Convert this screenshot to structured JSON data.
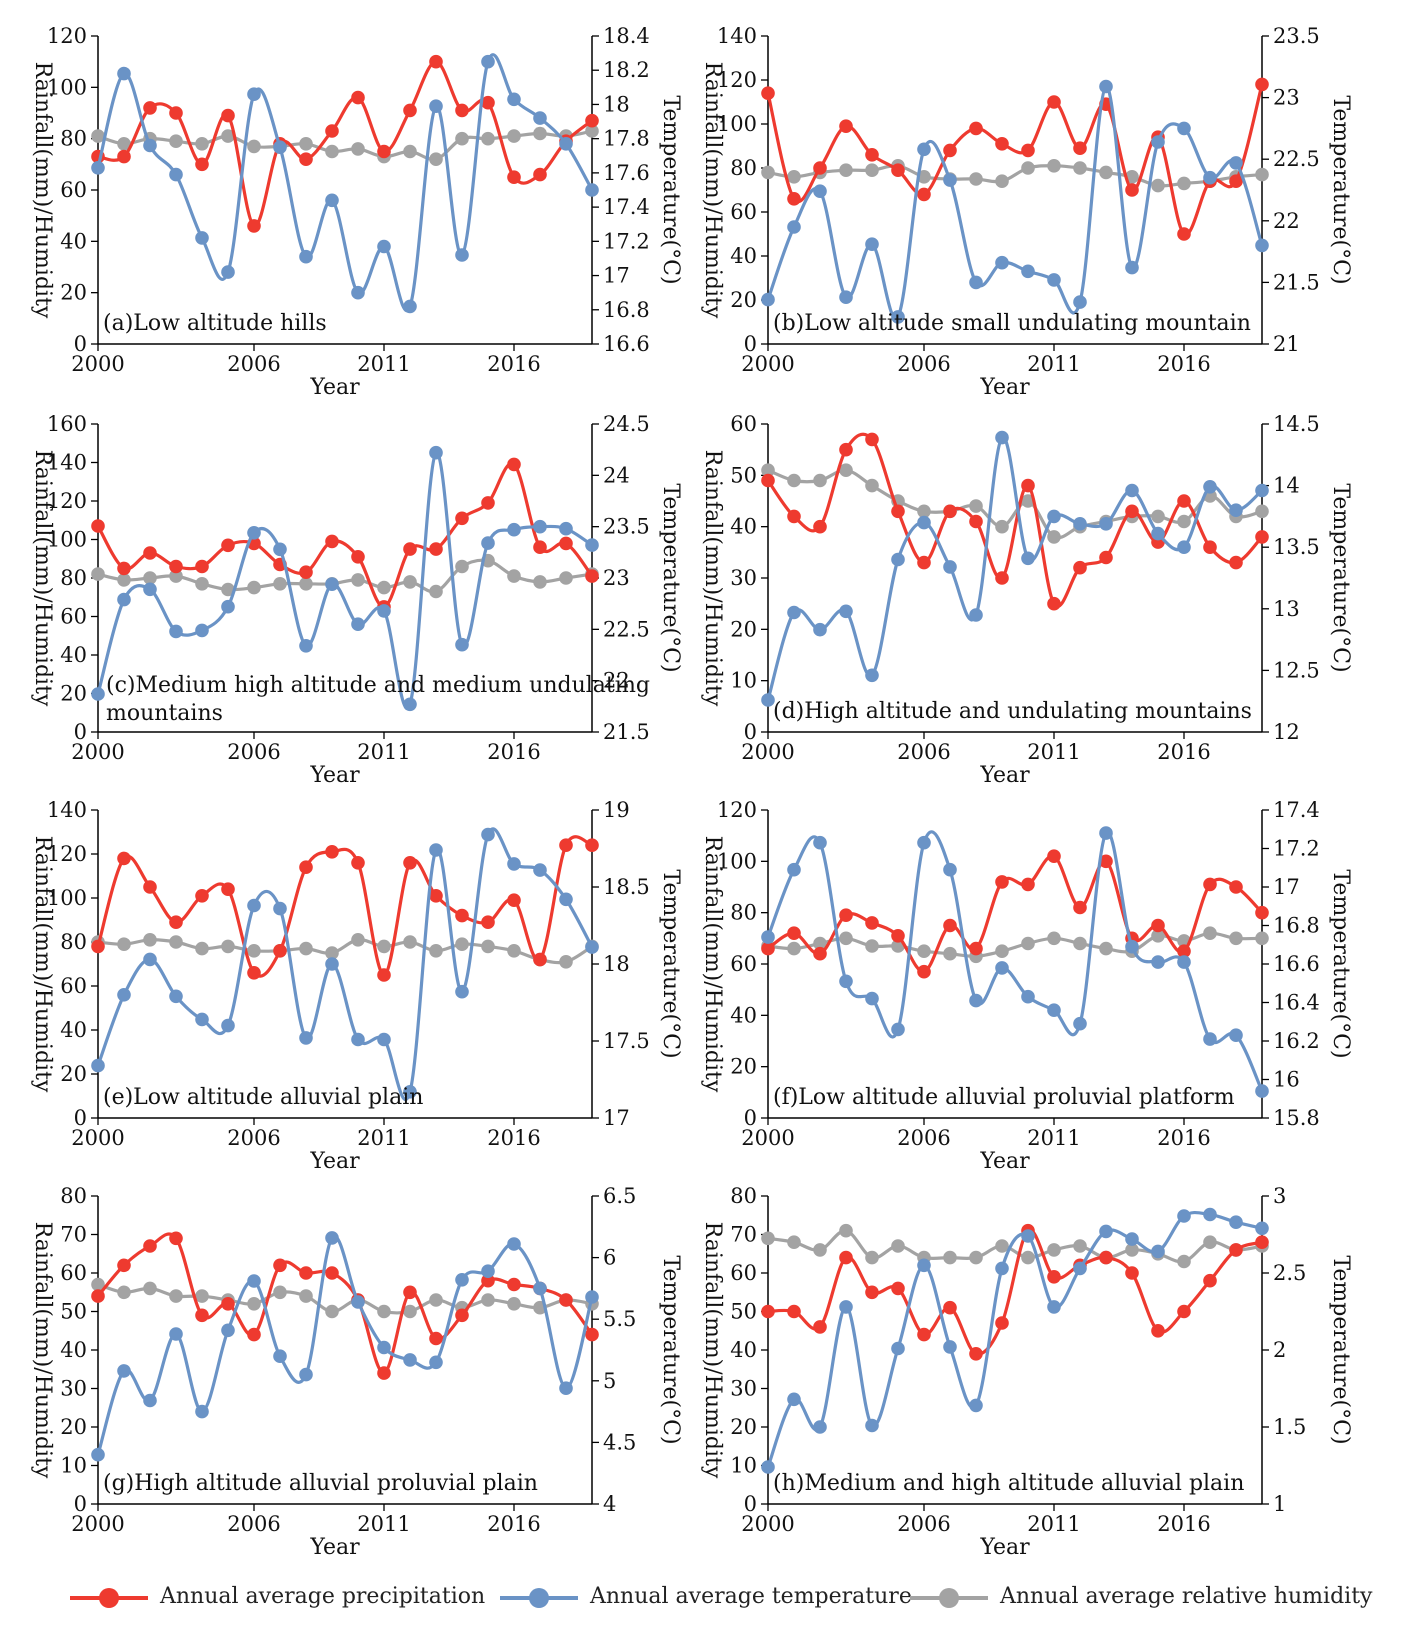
{
  "colors": {
    "precipitation": "#ee3a2f",
    "temperature": "#6a93c6",
    "humidity": "#a3a3a3"
  },
  "legend": {
    "precipitation": "Annual average precipitation",
    "temperature": "Annual average temperature",
    "humidity": "Annual average relative humidity"
  },
  "chart_data": [
    {
      "type": "line",
      "title": "(a)Low altitude hills",
      "xlabel": "Year",
      "ylabel": "Rainfall(mm)/Humidity",
      "y2label": "Temperature(°C)",
      "xticks": [
        2000,
        2006,
        2011,
        2016
      ],
      "xlim": [
        2000,
        2019
      ],
      "ylim": [
        0,
        120
      ],
      "yticks": [
        0,
        20,
        40,
        60,
        80,
        100,
        120
      ],
      "y2lim": [
        16.6,
        18.4
      ],
      "y2ticks": [
        16.6,
        16.8,
        17.0,
        17.2,
        17.4,
        17.6,
        17.8,
        18.0,
        18.2,
        18.4
      ],
      "x": [
        2000,
        2001,
        2002,
        2003,
        2004,
        2005,
        2006,
        2007,
        2008,
        2009,
        2010,
        2011,
        2012,
        2013,
        2014,
        2015,
        2016,
        2017,
        2018,
        2019
      ],
      "series": [
        {
          "name": "Annual average precipitation",
          "axis": "left",
          "values": [
            73,
            73,
            92,
            90,
            70,
            89,
            46,
            78,
            72,
            83,
            96,
            75,
            91,
            110,
            91,
            94,
            65,
            66,
            79,
            87
          ]
        },
        {
          "name": "Annual average temperature",
          "axis": "right",
          "values": [
            17.63,
            18.18,
            17.76,
            17.59,
            17.22,
            17.02,
            18.06,
            17.75,
            17.11,
            17.44,
            16.9,
            17.17,
            16.82,
            17.99,
            17.12,
            18.25,
            18.03,
            17.92,
            17.77,
            17.5
          ]
        },
        {
          "name": "Annual average relative humidity",
          "axis": "left",
          "values": [
            81,
            78,
            80,
            79,
            78,
            81,
            77,
            77,
            78,
            75,
            76,
            73,
            75,
            72,
            80,
            80,
            81,
            82,
            81,
            83
          ]
        }
      ]
    },
    {
      "type": "line",
      "title": "(b)Low altitude small undulating mountain",
      "xlabel": "Year",
      "ylabel": "Rainfall(mm)/Humidity",
      "y2label": "Temperature(°C)",
      "xticks": [
        2000,
        2006,
        2011,
        2016
      ],
      "xlim": [
        2000,
        2019
      ],
      "ylim": [
        0,
        140
      ],
      "yticks": [
        0,
        20,
        40,
        60,
        80,
        100,
        120,
        140
      ],
      "y2lim": [
        21,
        23.5
      ],
      "y2ticks": [
        21,
        21.5,
        22,
        22.5,
        23,
        23.5
      ],
      "x": [
        2000,
        2001,
        2002,
        2003,
        2004,
        2005,
        2006,
        2007,
        2008,
        2009,
        2010,
        2011,
        2012,
        2013,
        2014,
        2015,
        2016,
        2017,
        2018,
        2019
      ],
      "series": [
        {
          "name": "Annual average precipitation",
          "axis": "left",
          "values": [
            114,
            66,
            80,
            99,
            86,
            79,
            68,
            88,
            98,
            91,
            88,
            110,
            89,
            109,
            70,
            94,
            50,
            74,
            74,
            118
          ]
        },
        {
          "name": "Annual average temperature",
          "axis": "right",
          "values": [
            21.36,
            21.95,
            22.24,
            21.38,
            21.81,
            21.22,
            22.58,
            22.33,
            21.5,
            21.66,
            21.59,
            21.52,
            21.34,
            23.09,
            21.62,
            22.64,
            22.75,
            22.35,
            22.47,
            21.8
          ]
        },
        {
          "name": "Annual average relative humidity",
          "axis": "left",
          "values": [
            78,
            76,
            78,
            79,
            79,
            81,
            76,
            75,
            75,
            74,
            80,
            81,
            80,
            78,
            76,
            72,
            73,
            74,
            76,
            77
          ]
        }
      ]
    },
    {
      "type": "line",
      "title": "(c)Medium high altitude and medium undulating mountains",
      "xlabel": "Year",
      "ylabel": "Rainfall(mm)/Humidity",
      "y2label": "Temperature(°C)",
      "xticks": [
        2000,
        2006,
        2011,
        2016
      ],
      "xlim": [
        2000,
        2019
      ],
      "ylim": [
        0,
        160
      ],
      "yticks": [
        0,
        20,
        40,
        60,
        80,
        100,
        120,
        140,
        160
      ],
      "y2lim": [
        21.5,
        24.5
      ],
      "y2ticks": [
        21.5,
        22,
        22.5,
        23,
        23.5,
        24,
        24.5
      ],
      "x": [
        2000,
        2001,
        2002,
        2003,
        2004,
        2005,
        2006,
        2007,
        2008,
        2009,
        2010,
        2011,
        2012,
        2013,
        2014,
        2015,
        2016,
        2017,
        2018,
        2019
      ],
      "series": [
        {
          "name": "Annual average precipitation",
          "axis": "left",
          "values": [
            107,
            85,
            93,
            86,
            86,
            97,
            98,
            87,
            83,
            99,
            91,
            65,
            95,
            95,
            111,
            119,
            139,
            96,
            98,
            81
          ]
        },
        {
          "name": "Annual average temperature",
          "axis": "right",
          "values": [
            21.87,
            22.79,
            22.89,
            22.48,
            22.49,
            22.72,
            23.44,
            23.28,
            22.34,
            22.94,
            22.55,
            22.68,
            21.77,
            24.22,
            22.35,
            23.34,
            23.47,
            23.5,
            23.48,
            23.32
          ]
        },
        {
          "name": "Annual average relative humidity",
          "axis": "left",
          "values": [
            82,
            79,
            80,
            81,
            77,
            74,
            75,
            77,
            77,
            77,
            79,
            75,
            78,
            73,
            86,
            89,
            81,
            78,
            80,
            82
          ]
        }
      ]
    },
    {
      "type": "line",
      "title": "(d)High altitude and undulating mountains",
      "xlabel": "Year",
      "ylabel": "Rainfall(mm)/Humidity",
      "y2label": "Temperature(°C)",
      "xticks": [
        2000,
        2006,
        2011,
        2016
      ],
      "xlim": [
        2000,
        2019
      ],
      "ylim": [
        0,
        60
      ],
      "yticks": [
        0,
        10,
        20,
        30,
        40,
        50,
        60
      ],
      "y2lim": [
        12,
        14.5
      ],
      "y2ticks": [
        12,
        12.5,
        13,
        13.5,
        14,
        14.5
      ],
      "x": [
        2000,
        2001,
        2002,
        2003,
        2004,
        2005,
        2006,
        2007,
        2008,
        2009,
        2010,
        2011,
        2012,
        2013,
        2014,
        2015,
        2016,
        2017,
        2018,
        2019
      ],
      "series": [
        {
          "name": "Annual average precipitation",
          "axis": "left",
          "values": [
            49,
            42,
            40,
            55,
            57,
            43,
            33,
            43,
            41,
            30,
            48,
            25,
            32,
            34,
            43,
            37,
            45,
            36,
            33,
            38
          ]
        },
        {
          "name": "Annual average temperature",
          "axis": "right",
          "values": [
            12.26,
            12.97,
            12.83,
            12.98,
            12.46,
            13.4,
            13.7,
            13.34,
            12.95,
            14.39,
            13.41,
            13.75,
            13.69,
            13.69,
            13.96,
            13.61,
            13.5,
            13.99,
            13.8,
            13.96
          ]
        },
        {
          "name": "Annual average relative humidity",
          "axis": "left",
          "values": [
            51,
            49,
            49,
            51,
            48,
            45,
            43,
            43,
            44,
            40,
            45,
            38,
            40,
            41,
            42,
            42,
            41,
            46,
            42,
            43
          ]
        }
      ]
    },
    {
      "type": "line",
      "title": "(e)Low altitude alluvial plain",
      "xlabel": "Year",
      "ylabel": "Rainfall(mm)/Humidity",
      "y2label": "Temperature(°C)",
      "xticks": [
        2000,
        2006,
        2011,
        2016
      ],
      "xlim": [
        2000,
        2019
      ],
      "ylim": [
        0,
        140
      ],
      "yticks": [
        0,
        20,
        40,
        60,
        80,
        100,
        120,
        140
      ],
      "y2lim": [
        17,
        19
      ],
      "y2ticks": [
        17,
        17.5,
        18,
        18.5,
        19
      ],
      "x": [
        2000,
        2001,
        2002,
        2003,
        2004,
        2005,
        2006,
        2007,
        2008,
        2009,
        2010,
        2011,
        2012,
        2013,
        2014,
        2015,
        2016,
        2017,
        2018,
        2019
      ],
      "series": [
        {
          "name": "Annual average precipitation",
          "axis": "left",
          "values": [
            78,
            118,
            105,
            89,
            101,
            104,
            66,
            76,
            114,
            121,
            116,
            65,
            116,
            101,
            92,
            89,
            99,
            72,
            124,
            124
          ]
        },
        {
          "name": "Annual average temperature",
          "axis": "right",
          "values": [
            17.34,
            17.8,
            18.03,
            17.79,
            17.64,
            17.6,
            18.38,
            18.36,
            17.52,
            18.0,
            17.51,
            17.51,
            17.17,
            18.74,
            17.82,
            18.84,
            18.65,
            18.61,
            18.42,
            18.11
          ]
        },
        {
          "name": "Annual average relative humidity",
          "axis": "left",
          "values": [
            80,
            79,
            81,
            80,
            77,
            78,
            76,
            76,
            77,
            75,
            81,
            78,
            80,
            76,
            79,
            78,
            76,
            72,
            71,
            78
          ]
        }
      ]
    },
    {
      "type": "line",
      "title": "(f)Low altitude alluvial proluvial platform",
      "xlabel": "Year",
      "ylabel": "Rainfall(mm)/Humidity",
      "y2label": "Temperature(°C)",
      "xticks": [
        2000,
        2006,
        2011,
        2016
      ],
      "xlim": [
        2000,
        2019
      ],
      "ylim": [
        0,
        120
      ],
      "yticks": [
        0,
        20,
        40,
        60,
        80,
        100,
        120
      ],
      "y2lim": [
        15.8,
        17.4
      ],
      "y2ticks": [
        15.8,
        16.0,
        16.2,
        16.4,
        16.6,
        16.8,
        17.0,
        17.2,
        17.4
      ],
      "x": [
        2000,
        2001,
        2002,
        2003,
        2004,
        2005,
        2006,
        2007,
        2008,
        2009,
        2010,
        2011,
        2012,
        2013,
        2014,
        2015,
        2016,
        2017,
        2018,
        2019
      ],
      "series": [
        {
          "name": "Annual average precipitation",
          "axis": "left",
          "values": [
            66,
            72,
            64,
            79,
            76,
            71,
            57,
            75,
            66,
            92,
            91,
            102,
            82,
            100,
            70,
            75,
            65,
            91,
            90,
            80
          ]
        },
        {
          "name": "Annual average temperature",
          "axis": "right",
          "values": [
            16.74,
            17.09,
            17.23,
            16.51,
            16.42,
            16.26,
            17.23,
            17.09,
            16.41,
            16.58,
            16.43,
            16.36,
            16.29,
            17.28,
            16.69,
            16.61,
            16.61,
            16.21,
            16.23,
            15.94
          ]
        },
        {
          "name": "Annual average relative humidity",
          "axis": "left",
          "values": [
            67,
            66,
            68,
            70,
            67,
            67,
            65,
            64,
            63,
            65,
            68,
            70,
            68,
            66,
            65,
            71,
            69,
            72,
            70,
            70
          ]
        }
      ]
    },
    {
      "type": "line",
      "title": "(g)High altitude alluvial proluvial plain",
      "xlabel": "Year",
      "ylabel": "Rainfall(mm)/Humidity",
      "y2label": "Temperature(°C)",
      "xticks": [
        2000,
        2006,
        2011,
        2016
      ],
      "xlim": [
        2000,
        2019
      ],
      "ylim": [
        0,
        80
      ],
      "yticks": [
        0,
        10,
        20,
        30,
        40,
        50,
        60,
        70,
        80
      ],
      "y2lim": [
        4,
        6.5
      ],
      "y2ticks": [
        4,
        4.5,
        5,
        5.5,
        6,
        6.5
      ],
      "x": [
        2000,
        2001,
        2002,
        2003,
        2004,
        2005,
        2006,
        2007,
        2008,
        2009,
        2010,
        2011,
        2012,
        2013,
        2014,
        2015,
        2016,
        2017,
        2018,
        2019
      ],
      "series": [
        {
          "name": "Annual average precipitation",
          "axis": "left",
          "values": [
            54,
            62,
            67,
            69,
            49,
            52,
            44,
            62,
            60,
            60,
            53,
            34,
            55,
            43,
            49,
            58,
            57,
            56,
            53,
            44
          ]
        },
        {
          "name": "Annual average temperature",
          "axis": "right",
          "values": [
            4.4,
            5.08,
            4.84,
            5.38,
            4.75,
            5.41,
            5.81,
            5.2,
            5.05,
            6.16,
            5.64,
            5.27,
            5.17,
            5.15,
            5.82,
            5.89,
            6.11,
            5.75,
            4.94,
            5.68
          ]
        },
        {
          "name": "Annual average relative humidity",
          "axis": "left",
          "values": [
            57,
            55,
            56,
            54,
            54,
            53,
            52,
            55,
            54,
            50,
            53,
            50,
            50,
            53,
            51,
            53,
            52,
            51,
            53,
            52
          ]
        }
      ]
    },
    {
      "type": "line",
      "title": "(h)Medium and high altitude alluvial plain",
      "xlabel": "Year",
      "ylabel": "Rainfall(mm)/Humidity",
      "y2label": "Temperature(°C)",
      "xticks": [
        2000,
        2006,
        2011,
        2016
      ],
      "xlim": [
        2000,
        2019
      ],
      "ylim": [
        0,
        80
      ],
      "yticks": [
        0,
        10,
        20,
        30,
        40,
        50,
        60,
        70,
        80
      ],
      "y2lim": [
        1,
        3
      ],
      "y2ticks": [
        1,
        1.5,
        2,
        2.5,
        3
      ],
      "x": [
        2000,
        2001,
        2002,
        2003,
        2004,
        2005,
        2006,
        2007,
        2008,
        2009,
        2010,
        2011,
        2012,
        2013,
        2014,
        2015,
        2016,
        2017,
        2018,
        2019
      ],
      "series": [
        {
          "name": "Annual average precipitation",
          "axis": "left",
          "values": [
            50,
            50,
            46,
            64,
            55,
            56,
            44,
            51,
            39,
            47,
            71,
            59,
            62,
            64,
            60,
            45,
            50,
            58,
            66,
            68
          ]
        },
        {
          "name": "Annual average temperature",
          "axis": "right",
          "values": [
            1.24,
            1.68,
            1.5,
            2.28,
            1.51,
            2.01,
            2.55,
            2.02,
            1.64,
            2.53,
            2.74,
            2.28,
            2.53,
            2.77,
            2.72,
            2.64,
            2.87,
            2.88,
            2.83,
            2.79
          ]
        },
        {
          "name": "Annual average relative humidity",
          "axis": "left",
          "values": [
            69,
            68,
            66,
            71,
            64,
            67,
            64,
            64,
            64,
            67,
            64,
            66,
            67,
            64,
            66,
            65,
            63,
            68,
            66,
            67
          ]
        }
      ]
    }
  ]
}
